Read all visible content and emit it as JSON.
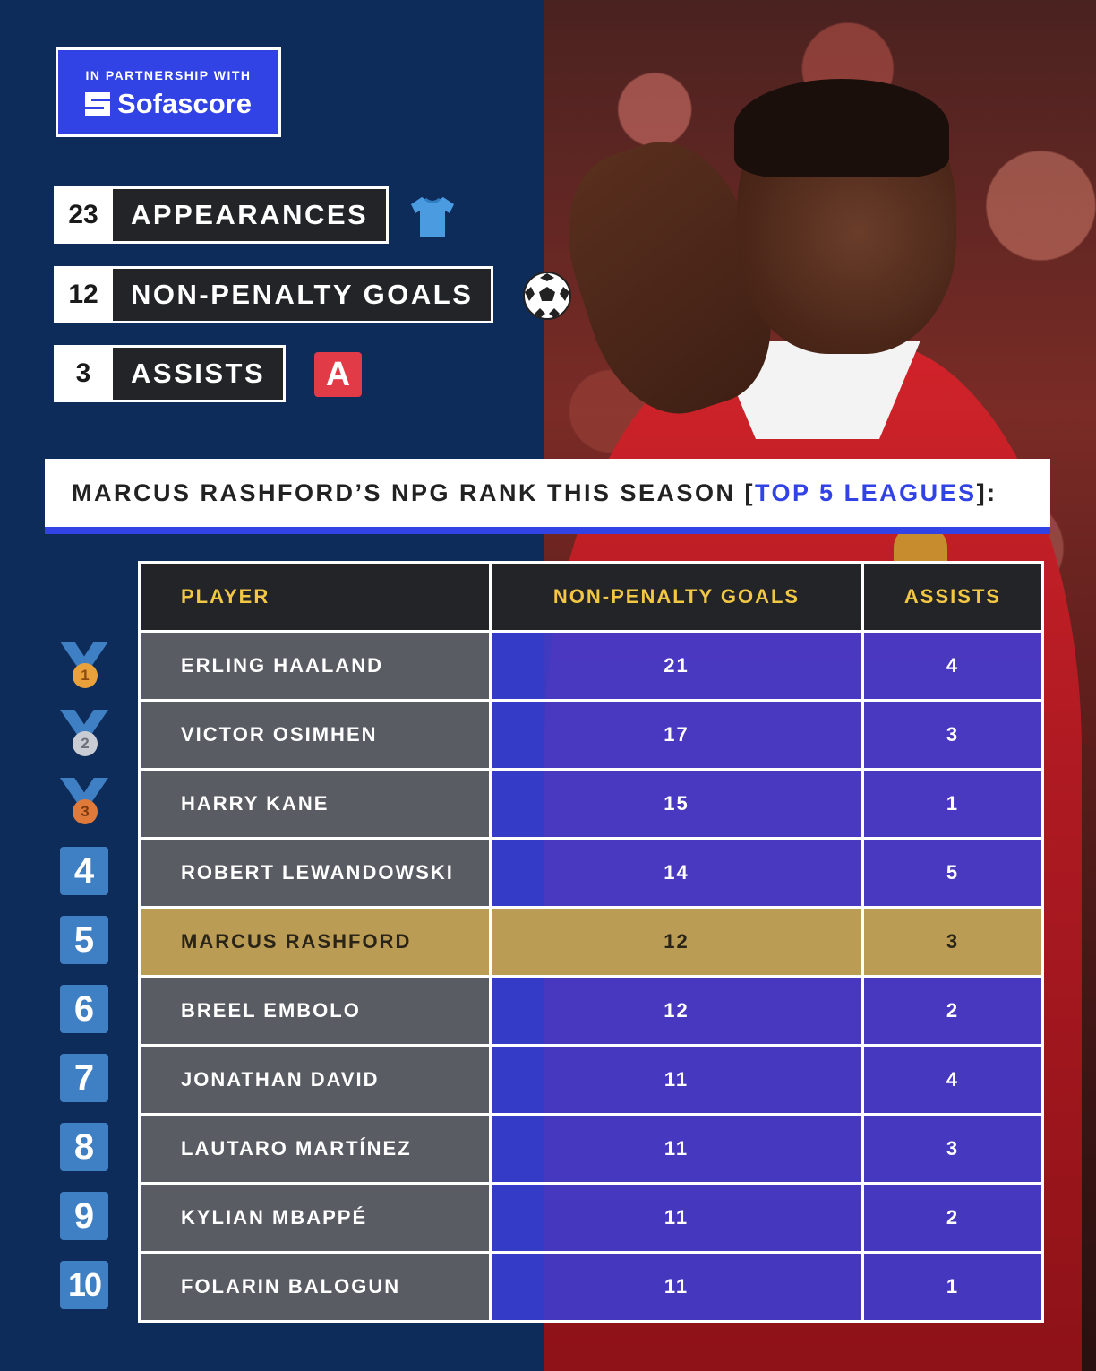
{
  "partner": {
    "tagline": "IN PARTNERSHIP WITH",
    "brand": "Sofascore"
  },
  "stats": [
    {
      "value": "23",
      "label": "APPEARANCES",
      "icon": "shirt-icon"
    },
    {
      "value": "12",
      "label": "NON-PENALTY GOALS",
      "icon": "football-icon"
    },
    {
      "value": "3",
      "label": "ASSISTS",
      "icon": "assist-icon",
      "icon_text": "A"
    }
  ],
  "title": {
    "prefix": "MARCUS RASHFORD’S NPG RANK THIS SEASON [",
    "highlight": "TOP 5 LEAGUES",
    "suffix": "]:"
  },
  "table": {
    "headers": [
      "PLAYER",
      "NON-PENALTY GOALS",
      "ASSISTS"
    ],
    "rows": [
      {
        "rank": "1",
        "player": "ERLING HAALAND",
        "npg": "21",
        "assists": "4"
      },
      {
        "rank": "2",
        "player": "VICTOR OSIMHEN",
        "npg": "17",
        "assists": "3"
      },
      {
        "rank": "3",
        "player": "HARRY KANE",
        "npg": "15",
        "assists": "1"
      },
      {
        "rank": "4",
        "player": "ROBERT LEWANDOWSKI",
        "npg": "14",
        "assists": "5"
      },
      {
        "rank": "5",
        "player": "MARCUS RASHFORD",
        "npg": "12",
        "assists": "3"
      },
      {
        "rank": "6",
        "player": "BREEL EMBOLO",
        "npg": "12",
        "assists": "2"
      },
      {
        "rank": "7",
        "player": "JONATHAN DAVID",
        "npg": "11",
        "assists": "4"
      },
      {
        "rank": "8",
        "player": "LAUTARO MARTÍNEZ",
        "npg": "11",
        "assists": "3"
      },
      {
        "rank": "9",
        "player": "KYLIAN MBAPPÉ",
        "npg": "11",
        "assists": "2"
      },
      {
        "rank": "10",
        "player": "FOLARIN BALOGUN",
        "npg": "11",
        "assists": "1"
      }
    ]
  },
  "colors": {
    "navy": "#0e2c5a",
    "accent_blue": "#3243e6",
    "header_gold": "#f2c744",
    "highlight_row": "#bb9c54",
    "gold_medal": "#e9a23b",
    "silver_medal": "#c9ccd2",
    "bronze_medal": "#e07a3a"
  }
}
